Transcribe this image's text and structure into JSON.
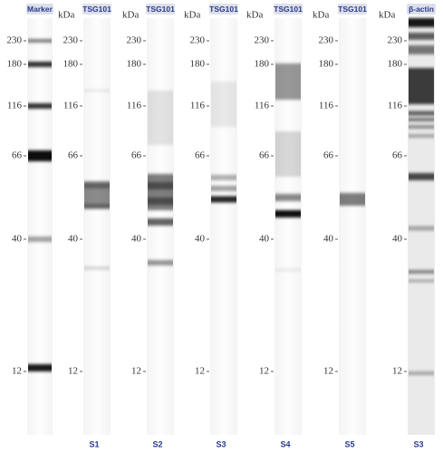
{
  "marker": {
    "header": "Marker"
  },
  "axis": {
    "unit": "kDa",
    "ticks": [
      "230",
      "180",
      "116",
      "66",
      "40",
      "12"
    ]
  },
  "panels": [
    {
      "header": "TSG101",
      "sample": "S1"
    },
    {
      "header": "TSG101",
      "sample": "S2"
    },
    {
      "header": "TSG101",
      "sample": "S3"
    },
    {
      "header": "TSG101",
      "sample": "S4"
    },
    {
      "header": "TSG101",
      "sample": "S5"
    },
    {
      "header": "β-actin",
      "sample": "S3"
    }
  ]
}
